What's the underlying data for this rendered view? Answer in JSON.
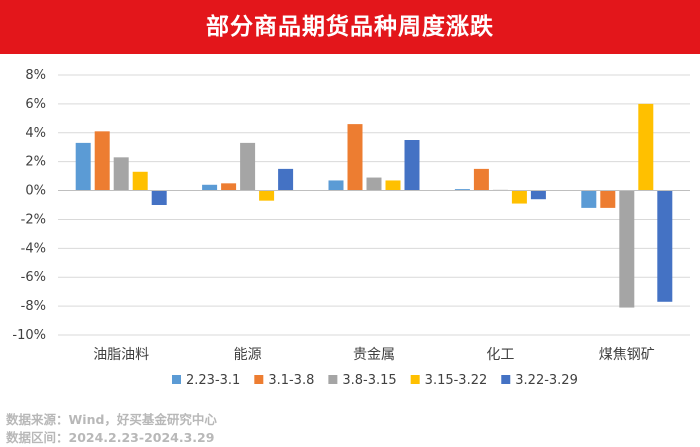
{
  "header": {
    "title": "部分商品期货品种周度涨跌"
  },
  "footer": {
    "source": "数据来源：Wind，好买基金研究中心",
    "period": "数据区间：2024.2.23-2024.3.29"
  },
  "chart_data": {
    "type": "bar",
    "title": "部分商品期货品种周度涨跌",
    "categories": [
      "油脂油料",
      "能源",
      "贵金属",
      "化工",
      "煤焦钢矿"
    ],
    "series": [
      {
        "name": "2.23-3.1",
        "color": "#5b9bd5",
        "values": [
          3.3,
          0.4,
          0.7,
          0.1,
          -1.2
        ]
      },
      {
        "name": "3.1-3.8",
        "color": "#ed7d31",
        "values": [
          4.1,
          0.5,
          4.6,
          1.5,
          -1.2
        ]
      },
      {
        "name": "3.8-3.15",
        "color": "#a5a5a5",
        "values": [
          2.3,
          3.3,
          0.9,
          0.05,
          -8.1
        ]
      },
      {
        "name": "3.15-3.22",
        "color": "#ffc000",
        "values": [
          1.3,
          -0.7,
          0.7,
          -0.9,
          6.0
        ]
      },
      {
        "name": "3.22-3.29",
        "color": "#4472c4",
        "values": [
          -1.0,
          1.5,
          3.5,
          -0.6,
          -7.7
        ]
      }
    ],
    "ylim": [
      -10,
      8
    ],
    "yticks": [
      "8%",
      "6%",
      "4%",
      "2%",
      "0%",
      "-2%",
      "-4%",
      "-6%",
      "-8%",
      "-10%"
    ],
    "ytick_values": [
      8,
      6,
      4,
      2,
      0,
      -2,
      -4,
      -6,
      -8,
      -10
    ],
    "grid": true,
    "legend_position": "bottom"
  }
}
